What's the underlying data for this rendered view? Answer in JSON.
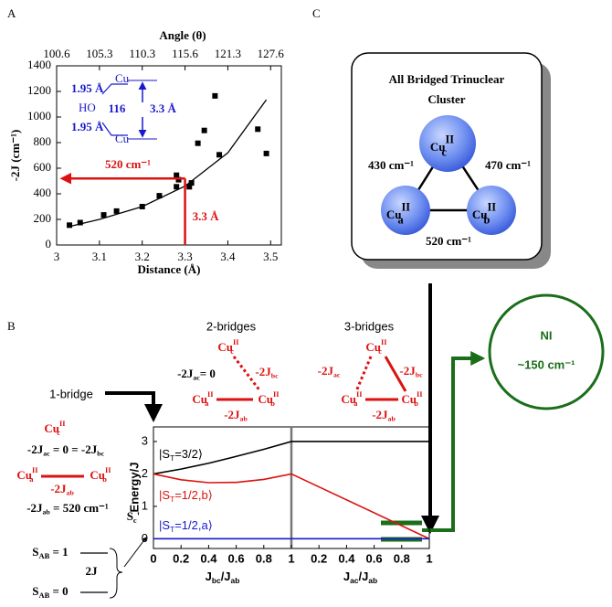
{
  "panel_labels": [
    "A",
    "B",
    "C"
  ],
  "chart_data": [
    {
      "type": "scatter",
      "x2label": "Angle (θ)",
      "xlabel": "Distance (Å)",
      "ylabel": "-2J (cm⁻¹)",
      "x": [
        3.03,
        3.055,
        3.11,
        3.14,
        3.2,
        3.24,
        3.28,
        3.28,
        3.285,
        3.31,
        3.315,
        3.33,
        3.345,
        3.37,
        3.38,
        3.47,
        3.49
      ],
      "values": [
        155,
        175,
        235,
        265,
        300,
        385,
        455,
        545,
        510,
        455,
        485,
        795,
        895,
        1165,
        705,
        905,
        715
      ],
      "color": "#000000",
      "xlim": [
        3,
        3.525
      ],
      "xticks": [
        3,
        3.1,
        3.2,
        3.3,
        3.4,
        3.5
      ],
      "x2ticks": [
        {
          "value": 3,
          "label": "100.6"
        },
        {
          "value": 3.1,
          "label": "105.3"
        },
        {
          "value": 3.2,
          "label": "110.3"
        },
        {
          "value": 3.3,
          "label": "115.6"
        },
        {
          "value": 3.4,
          "label": "121.3"
        },
        {
          "value": 3.5,
          "label": "127.6"
        }
      ],
      "ylim": [
        0,
        1400
      ],
      "yticks": [
        0,
        200,
        400,
        600,
        800,
        1000,
        1200,
        1400
      ],
      "fit": {
        "color": "#000000",
        "x": [
          3.03,
          3.1,
          3.2,
          3.3,
          3.4,
          3.49
        ],
        "values": [
          145,
          200,
          300,
          460,
          720,
          1135
        ]
      },
      "annotations": [
        {
          "text": "520 cm⁻¹",
          "x": 3.3,
          "y": 520,
          "color": "#dd1111"
        },
        {
          "text": "3.3 Å",
          "x": 3.3,
          "y": 520,
          "color": "#dd1111"
        }
      ],
      "inset": {
        "color": "#1a1acc",
        "texts": [
          "1.95 Å",
          "HO",
          "116",
          "1.95 Å",
          "Cu",
          "Cu",
          "3.3 Å"
        ]
      }
    },
    {
      "type": "line",
      "ylabel": "Energy/J",
      "xlabels": [
        [
          {
            "t": "J"
          },
          {
            "sub": "bc"
          },
          {
            "t": "/J"
          },
          {
            "sub": "ab"
          }
        ],
        [
          {
            "t": "J"
          },
          {
            "sub": "ac"
          },
          {
            "t": "/J"
          },
          {
            "sub": "ab"
          }
        ]
      ],
      "xlim": [
        0,
        2
      ],
      "xticks": [
        0,
        0.2,
        0.4,
        0.6,
        0.8,
        1,
        {
          "value": 1.2,
          "label": "0.2"
        },
        {
          "value": 1.4,
          "label": "0.4"
        },
        {
          "value": 1.6,
          "label": "0.6"
        },
        {
          "value": 1.8,
          "label": "0.8"
        },
        {
          "value": 2,
          "label": "1"
        }
      ],
      "ylim": [
        -0.3,
        3.45
      ],
      "yticks": [
        0,
        1,
        2,
        3
      ],
      "series": [
        {
          "name": [
            {
              "t": "|S"
            },
            {
              "sub": "T"
            },
            {
              "t": "=3/2⟩"
            }
          ],
          "color": "#000000",
          "x": [
            0,
            0.2,
            0.4,
            0.6,
            0.8,
            1,
            2
          ],
          "values": [
            2,
            2.15,
            2.33,
            2.54,
            2.76,
            3,
            3
          ]
        },
        {
          "name": [
            {
              "t": "|S"
            },
            {
              "sub": "T"
            },
            {
              "t": "=1/2,b⟩"
            }
          ],
          "color": "#dd1111",
          "x": [
            0,
            0.2,
            0.4,
            0.6,
            0.8,
            1,
            2
          ],
          "values": [
            2,
            1.82,
            1.73,
            1.74,
            1.83,
            2,
            0
          ]
        },
        {
          "name": [
            {
              "t": "|S"
            },
            {
              "sub": "T"
            },
            {
              "t": "=1/2,a⟩"
            }
          ],
          "color": "#1a1acc",
          "x": [
            0,
            2
          ],
          "values": [
            0,
            0
          ]
        }
      ]
    }
  ],
  "cluster": {
    "title": [
      "All Bridged Trinuclear",
      "Cluster"
    ],
    "nodes": [
      [
        {
          "t": "Cu"
        },
        {
          "sup": "II"
        },
        {
          "sub": "c"
        }
      ],
      [
        {
          "t": "Cu"
        },
        {
          "sup": "II"
        },
        {
          "sub": "a"
        }
      ],
      [
        {
          "t": "Cu"
        },
        {
          "sup": "II"
        },
        {
          "sub": "b"
        }
      ]
    ],
    "edges": [
      "430 cm⁻¹",
      "470 cm⁻¹",
      "520 cm⁻¹"
    ]
  },
  "ni": {
    "title": "NI",
    "value": "~150 cm⁻¹"
  },
  "panel_b": {
    "one_bridge": {
      "title": "1-bridge",
      "cu_c": [
        {
          "t": "Cu"
        },
        {
          "sup": "II"
        },
        {
          "sub": "c"
        }
      ],
      "eq1": [
        {
          "t": "-2J"
        },
        {
          "sub": "ac"
        },
        {
          "t": " = 0 = -2J"
        },
        {
          "sub": "bc"
        }
      ],
      "cu_a": [
        {
          "t": "Cu"
        },
        {
          "sup": "II"
        },
        {
          "sub": "a"
        }
      ],
      "cu_b": [
        {
          "t": "Cu"
        },
        {
          "sup": "II"
        },
        {
          "sub": "b"
        }
      ],
      "jab": [
        {
          "t": "-2J"
        },
        {
          "sub": "ab"
        }
      ],
      "eq2": [
        {
          "t": "-2J"
        },
        {
          "sub": "ab"
        },
        {
          "t": " = 520 cm⁻¹"
        }
      ]
    },
    "two_bridges": {
      "title": "2-bridges",
      "cu_c": [
        {
          "t": "Cu"
        },
        {
          "sup": "II"
        },
        {
          "sub": "c"
        }
      ],
      "jac": [
        {
          "t": "-2J"
        },
        {
          "sub": "ac"
        },
        {
          "t": "= 0"
        }
      ],
      "jbc": [
        {
          "t": "-2J"
        },
        {
          "sub": "bc"
        }
      ],
      "cu_a": [
        {
          "t": "Cu"
        },
        {
          "sup": "II"
        },
        {
          "sub": "a"
        }
      ],
      "cu_b": [
        {
          "t": "Cu"
        },
        {
          "sup": "II"
        },
        {
          "sub": "b"
        }
      ],
      "jab": [
        {
          "t": "-2J"
        },
        {
          "sub": "ab"
        }
      ]
    },
    "three_bridges": {
      "title": "3-bridges",
      "cu_c": [
        {
          "t": "Cu"
        },
        {
          "sup": "II"
        },
        {
          "sub": "c"
        }
      ],
      "jac": [
        {
          "t": "-2J"
        },
        {
          "sub": "ac"
        }
      ],
      "jbc": [
        {
          "t": "-2J"
        },
        {
          "sub": "bc"
        }
      ],
      "cu_a": [
        {
          "t": "Cu"
        },
        {
          "sup": "II"
        },
        {
          "sub": "a"
        }
      ],
      "cu_b": [
        {
          "t": "Cu"
        },
        {
          "sup": "II"
        },
        {
          "sub": "b"
        }
      ],
      "jab": [
        {
          "t": "-2J"
        },
        {
          "sub": "ab"
        }
      ]
    },
    "spin": {
      "s1": [
        {
          "t": "S"
        },
        {
          "sub": "AB"
        },
        {
          "t": " = 1"
        }
      ],
      "gap": "2J",
      "s0": [
        {
          "t": "S"
        },
        {
          "sub": "AB"
        },
        {
          "t": " = 0"
        }
      ],
      "sc": [
        {
          "t": "S"
        },
        {
          "sub": "c"
        },
        {
          "t": "'"
        }
      ]
    }
  }
}
